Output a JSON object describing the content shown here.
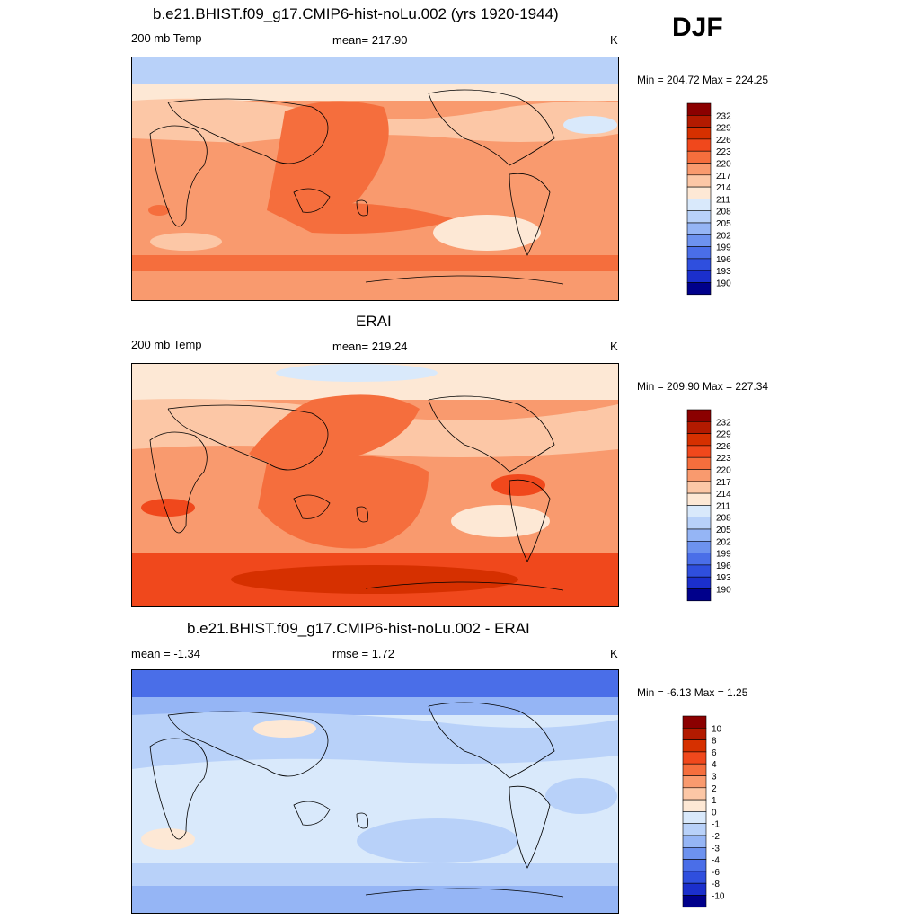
{
  "season": "DJF",
  "panels": [
    {
      "id": "model",
      "title": "b.e21.BHIST.f09_g17.CMIP6-hist-noLu.002 (yrs 1920-1944)",
      "left_label": "200 mb Temp",
      "center_label": "mean= 217.90",
      "units": "K",
      "minmax": "Min = 204.72 Max = 224.25",
      "colorbar": {
        "labels": [
          "232",
          "229",
          "226",
          "223",
          "220",
          "217",
          "214",
          "211",
          "208",
          "205",
          "202",
          "199",
          "196",
          "193",
          "190"
        ],
        "colors": [
          "#8b0000",
          "#b31a00",
          "#d63000",
          "#f0481c",
          "#f56e3d",
          "#f99a6e",
          "#fcc7a6",
          "#fde8d5",
          "#d9e9fb",
          "#b8d1f9",
          "#95b5f5",
          "#6d92ef",
          "#4a6ee8",
          "#2f4fde",
          "#1b2fcc",
          "#00008b"
        ]
      },
      "regions": [
        "band-north",
        "band-south",
        "arctic-cold",
        "east-asia-warm",
        "tropics-warm",
        "pacific-warm",
        "atlantic-cool"
      ]
    },
    {
      "id": "obs",
      "title": "ERAI",
      "left_label": "200 mb Temp",
      "center_label": "mean= 219.24",
      "units": "K",
      "minmax": "Min = 209.90 Max = 227.34",
      "colorbar": {
        "labels": [
          "232",
          "229",
          "226",
          "223",
          "220",
          "217",
          "214",
          "211",
          "208",
          "205",
          "202",
          "199",
          "196",
          "193",
          "190"
        ],
        "colors": [
          "#8b0000",
          "#b31a00",
          "#d63000",
          "#f0481c",
          "#f56e3d",
          "#f99a6e",
          "#fcc7a6",
          "#fde8d5",
          "#d9e9fb",
          "#b8d1f9",
          "#95b5f5",
          "#6d92ef",
          "#4a6ee8",
          "#2f4fde",
          "#1b2fcc",
          "#00008b"
        ]
      },
      "regions": [
        "band-north",
        "band-south",
        "arctic-cold",
        "east-asia-warm",
        "tropics-warm",
        "pacific-warm",
        "atlantic-cool"
      ]
    },
    {
      "id": "diff",
      "title": "b.e21.BHIST.f09_g17.CMIP6-hist-noLu.002 - ERAI",
      "left_label": "mean =  -1.34",
      "center_label": "rmse =   1.72",
      "units": "K",
      "minmax": "Min =  -6.13 Max =   1.25",
      "colorbar": {
        "labels": [
          "10",
          "8",
          "6",
          "4",
          "3",
          "2",
          "1",
          "0",
          "-1",
          "-2",
          "-3",
          "-4",
          "-6",
          "-8",
          "-10"
        ],
        "colors": [
          "#8b0000",
          "#b31a00",
          "#d63000",
          "#f0481c",
          "#f56e3d",
          "#f99a6e",
          "#fcc7a6",
          "#fde8d5",
          "#d9e9fb",
          "#b8d1f9",
          "#95b5f5",
          "#6d92ef",
          "#4a6ee8",
          "#2f4fde",
          "#1b2fcc",
          "#00008b"
        ]
      },
      "regions": [
        "arctic-cold",
        "north-band-cool",
        "east-asia-warm",
        "tropics-light",
        "south-cool",
        "africa-warm"
      ]
    }
  ],
  "chart_data": [
    {
      "type": "heatmap",
      "title": "b.e21.BHIST.f09_g17.CMIP6-hist-noLu.002 (yrs 1920-1944)",
      "variable": "200 mb Temp",
      "units": "K",
      "mean": 217.9,
      "min": 204.72,
      "max": 224.25,
      "levels": [
        190,
        193,
        196,
        199,
        202,
        205,
        208,
        211,
        214,
        217,
        220,
        223,
        226,
        229,
        232
      ]
    },
    {
      "type": "heatmap",
      "title": "ERAI",
      "variable": "200 mb Temp",
      "units": "K",
      "mean": 219.24,
      "min": 209.9,
      "max": 227.34,
      "levels": [
        190,
        193,
        196,
        199,
        202,
        205,
        208,
        211,
        214,
        217,
        220,
        223,
        226,
        229,
        232
      ]
    },
    {
      "type": "heatmap",
      "title": "b.e21.BHIST.f09_g17.CMIP6-hist-noLu.002 - ERAI",
      "variable": "difference",
      "units": "K",
      "mean": -1.34,
      "rmse": 1.72,
      "min": -6.13,
      "max": 1.25,
      "levels": [
        -10,
        -8,
        -6,
        -4,
        -3,
        -2,
        -1,
        0,
        1,
        2,
        3,
        4,
        6,
        8,
        10
      ]
    }
  ]
}
